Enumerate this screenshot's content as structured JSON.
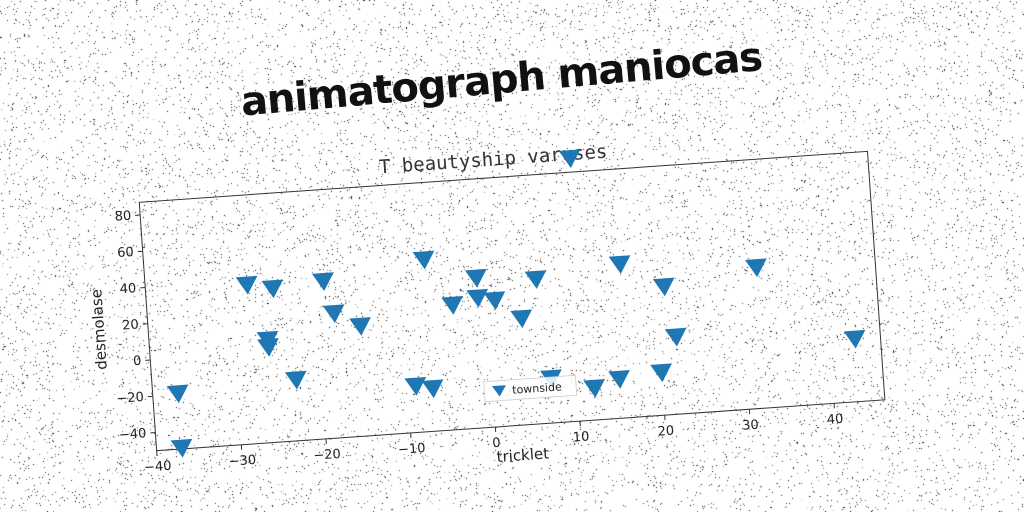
{
  "page": {
    "title": "animatograph maniocas"
  },
  "colors": {
    "marker": "#1f77b4",
    "background": "#ffffff",
    "noise": "#000000"
  },
  "chart_data": {
    "type": "scatter",
    "title": "T beautyship varuses",
    "xlabel": "tricklet",
    "ylabel": "desmolase",
    "xlim": [
      -40,
      46
    ],
    "ylim": [
      -50,
      87
    ],
    "xticks": [
      -40,
      -30,
      -20,
      -10,
      0,
      10,
      20,
      30,
      40
    ],
    "yticks": [
      -40,
      -20,
      0,
      20,
      40,
      60,
      80
    ],
    "xtick_labels": [
      "−40",
      "−30",
      "−20",
      "−10",
      "0",
      "10",
      "20",
      "30",
      "40"
    ],
    "ytick_labels": [
      "−40",
      "−20",
      "0",
      "20",
      "40",
      "60",
      "80"
    ],
    "legend": {
      "position": "lower center",
      "entries": [
        "townside"
      ]
    },
    "marker": "triangle-down",
    "series": [
      {
        "name": "townside",
        "points": [
          {
            "x": -37,
            "y": -19
          },
          {
            "x": -37,
            "y": -49
          },
          {
            "x": -28,
            "y": 38
          },
          {
            "x": -25,
            "y": 35
          },
          {
            "x": -26,
            "y": 7
          },
          {
            "x": -26,
            "y": 3
          },
          {
            "x": -23,
            "y": -16
          },
          {
            "x": -19,
            "y": 37
          },
          {
            "x": -18,
            "y": 19
          },
          {
            "x": -15,
            "y": 11
          },
          {
            "x": -9,
            "y": -24
          },
          {
            "x": -7,
            "y": -26
          },
          {
            "x": -7,
            "y": 45
          },
          {
            "x": -4,
            "y": 19
          },
          {
            "x": -1,
            "y": 33
          },
          {
            "x": -1,
            "y": 22
          },
          {
            "x": 1,
            "y": 20
          },
          {
            "x": 4,
            "y": 9
          },
          {
            "x": 6,
            "y": 30
          },
          {
            "x": 7,
            "y": -25
          },
          {
            "x": 11,
            "y": 95
          },
          {
            "x": 12,
            "y": -32
          },
          {
            "x": 15,
            "y": -28
          },
          {
            "x": 16,
            "y": 35
          },
          {
            "x": 20,
            "y": -26
          },
          {
            "x": 21,
            "y": 21
          },
          {
            "x": 22,
            "y": -7
          },
          {
            "x": 32,
            "y": 28
          },
          {
            "x": 43,
            "y": -15
          }
        ]
      }
    ]
  }
}
